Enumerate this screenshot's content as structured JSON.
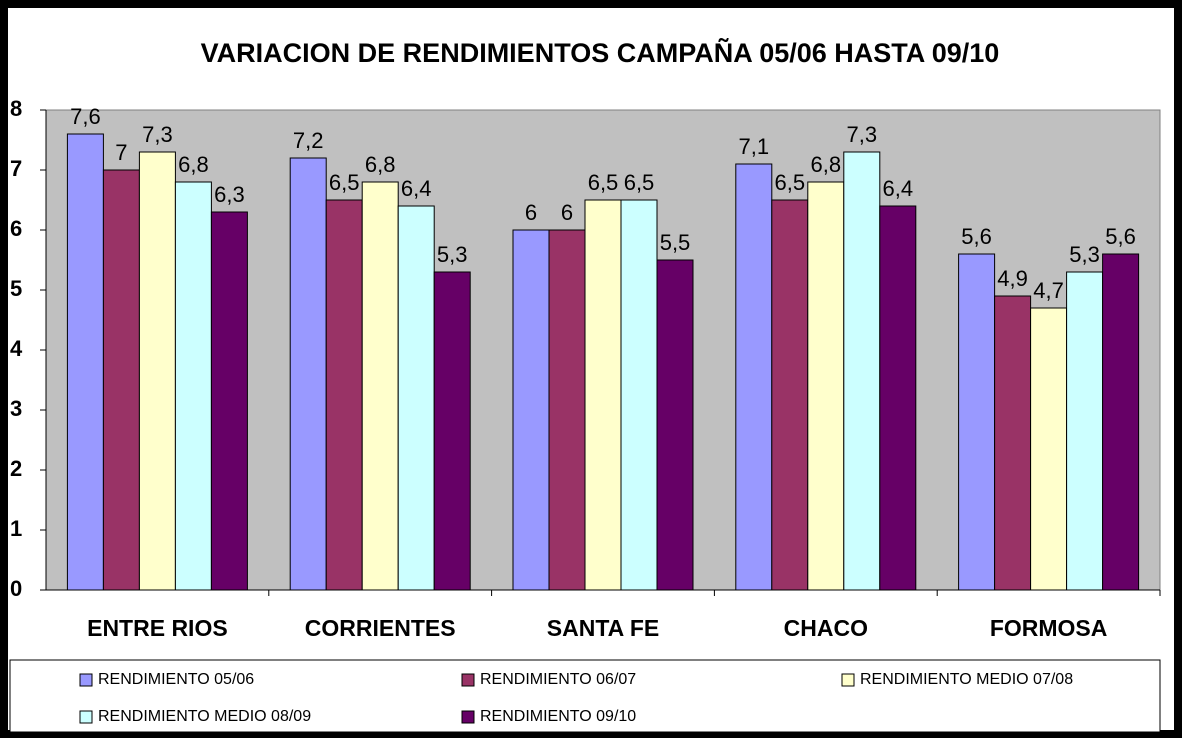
{
  "chart_data": {
    "type": "bar",
    "title": "VARIACION DE RENDIMIENTOS CAMPAÑA 05/06 HASTA 09/10",
    "categories": [
      "ENTRE RIOS",
      "CORRIENTES",
      "SANTA FE",
      "CHACO",
      "FORMOSA"
    ],
    "series": [
      {
        "name": "RENDIMIENTO 05/06",
        "color": "#9999ff",
        "values": [
          7.6,
          7.2,
          6,
          7.1,
          5.6
        ],
        "value_labels": [
          "7,6",
          "7,2",
          "6",
          "7,1",
          "5,6"
        ]
      },
      {
        "name": "RENDIMIENTO 06/07",
        "color": "#993366",
        "values": [
          7,
          6.5,
          6,
          6.5,
          4.9
        ],
        "value_labels": [
          "7",
          "6,5",
          "6",
          "6,5",
          "4,9"
        ]
      },
      {
        "name": "RENDIMIENTO MEDIO 07/08",
        "color": "#ffffcc",
        "values": [
          7.3,
          6.8,
          6.5,
          6.8,
          4.7
        ],
        "value_labels": [
          "7,3",
          "6,8",
          "6,5",
          "6,8",
          "4,7"
        ]
      },
      {
        "name": "RENDIMIENTO MEDIO 08/09",
        "color": "#ccffff",
        "values": [
          6.8,
          6.4,
          6.5,
          7.3,
          5.3
        ],
        "value_labels": [
          "6,8",
          "6,4",
          "6,5",
          "7,3",
          "5,3"
        ]
      },
      {
        "name": "RENDIMIENTO 09/10",
        "color": "#660066",
        "values": [
          6.3,
          5.3,
          5.5,
          6.4,
          5.6
        ],
        "value_labels": [
          "6,3",
          "5,3",
          "5,5",
          "6,4",
          "5,6"
        ]
      }
    ],
    "ylim": [
      0,
      8
    ],
    "yticks": [
      0,
      1,
      2,
      3,
      4,
      5,
      6,
      7,
      8
    ],
    "grid": false,
    "legend": "bottom"
  }
}
